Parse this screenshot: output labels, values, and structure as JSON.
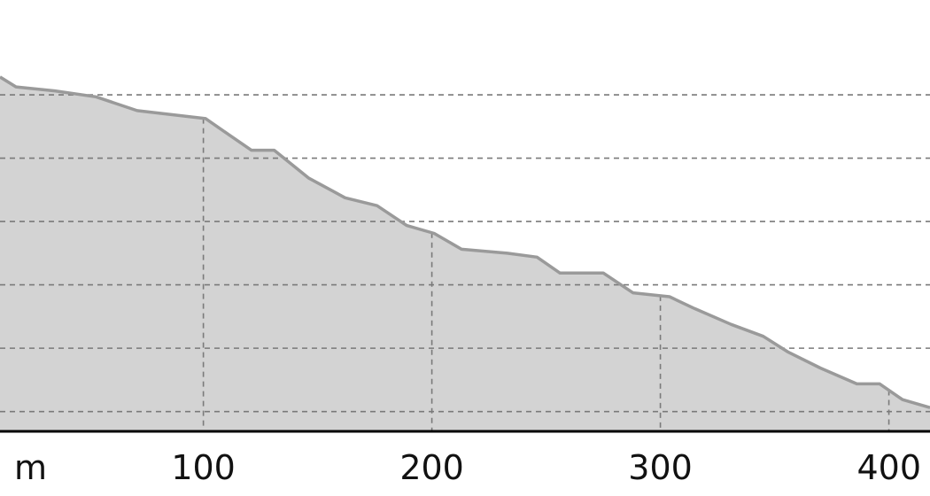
{
  "chart_data": {
    "type": "area",
    "x_unit": "m",
    "x_ticks": [
      100,
      200,
      300,
      400
    ],
    "xlim": [
      11,
      418
    ],
    "ylim": [
      0,
      100
    ],
    "y_gridlines": [
      5,
      21,
      37,
      53,
      69,
      85
    ],
    "grid": true,
    "x": [
      11,
      18,
      35,
      53,
      71,
      86,
      101,
      111,
      121,
      131,
      146,
      162,
      176,
      189,
      201,
      213,
      233,
      246,
      256,
      275,
      288,
      304,
      315,
      331,
      345,
      356,
      370,
      386,
      396,
      406,
      418
    ],
    "y": [
      89.5,
      87,
      86,
      84.5,
      81,
      80,
      79,
      75,
      71,
      71,
      64,
      59,
      57,
      52,
      50,
      46,
      45,
      44,
      40,
      40,
      35,
      34,
      31,
      27,
      24,
      20,
      16,
      12,
      12,
      8,
      6
    ],
    "colors": {
      "fill": "#d3d3d3",
      "line": "#9a9a9a",
      "grid": "#7a7a7a",
      "axis": "#000000"
    }
  }
}
